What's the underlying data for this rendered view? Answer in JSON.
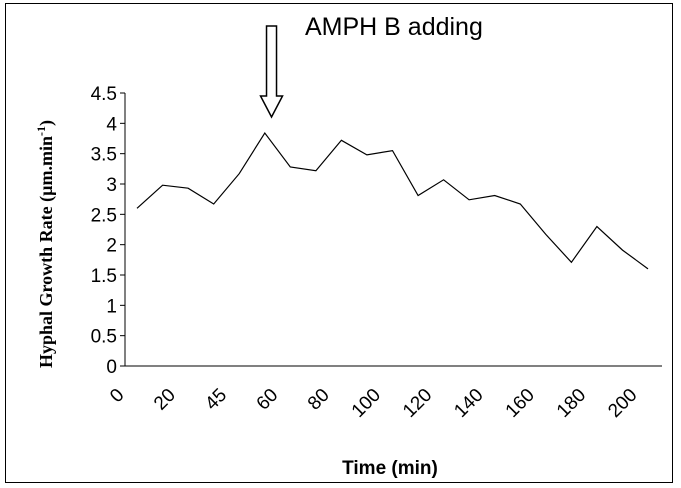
{
  "chart_data": {
    "type": "line",
    "annotation": "AMPH B adding",
    "xlabel": "Time (min)",
    "ylabel": "Hyphal Growth Rate (µm.min",
    "ylabel_sup": "-1",
    "ylabel_close": ")",
    "ylim": [
      0,
      4.5
    ],
    "y_ticks": [
      "0",
      "0.5",
      "1",
      "1.5",
      "2",
      "2.5",
      "3",
      "3.5",
      "4",
      "4.5"
    ],
    "x_ticks": [
      "0",
      "20",
      "45",
      "60",
      "80",
      "100",
      "120",
      "140",
      "160",
      "180",
      "200"
    ],
    "legend": "none",
    "grid": false,
    "series": [
      {
        "values": [
          2.6,
          2.98,
          2.93,
          2.67,
          3.17,
          3.84,
          3.28,
          3.22,
          3.72,
          3.48,
          3.55,
          2.81,
          3.07,
          2.74,
          2.81,
          2.67,
          2.17,
          1.71,
          2.3,
          1.91,
          1.6
        ]
      }
    ],
    "arrow_at_point_index": 5.5
  }
}
